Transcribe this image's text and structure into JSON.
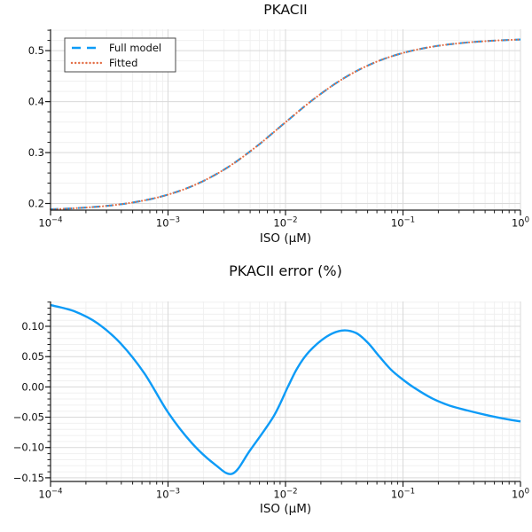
{
  "chart_data": [
    {
      "type": "line",
      "title": "PKACII",
      "xlabel": "ISO (μM)",
      "ylabel": "",
      "x_scale": "log10",
      "xlim_log10": [
        -4,
        0
      ],
      "ylim": [
        0.187,
        0.542
      ],
      "x_ticks_log10": [
        -4,
        -3,
        -2,
        -1,
        0
      ],
      "x_tick_labels": [
        "10^−4",
        "10^−3",
        "10^−2",
        "10^−1",
        "10^0"
      ],
      "y_ticks": [
        0.2,
        0.3,
        0.4,
        0.5
      ],
      "y_tick_labels": [
        "0.2",
        "0.3",
        "0.4",
        "0.5"
      ],
      "grid": {
        "major": true,
        "minor": true
      },
      "legend": {
        "position": "top-left"
      },
      "series": [
        {
          "name": "Full model",
          "color": "#0d9bf7",
          "line_style": "dashed",
          "points_log10x_y": [
            [
              -4.0,
              0.1885
            ],
            [
              -3.75,
              0.1913
            ],
            [
              -3.5,
              0.1959
            ],
            [
              -3.25,
              0.204
            ],
            [
              -3.0,
              0.2174
            ],
            [
              -2.75,
              0.2386
            ],
            [
              -2.5,
              0.2699
            ],
            [
              -2.25,
              0.3114
            ],
            [
              -2.0,
              0.3594
            ],
            [
              -1.75,
              0.4066
            ],
            [
              -1.5,
              0.4464
            ],
            [
              -1.25,
              0.4759
            ],
            [
              -1.0,
              0.4955
            ],
            [
              -0.75,
              0.5078
            ],
            [
              -0.5,
              0.5151
            ],
            [
              -0.25,
              0.5193
            ],
            [
              0.0,
              0.5218
            ]
          ]
        },
        {
          "name": "Fitted",
          "color": "#e36f47",
          "line_style": "dotted",
          "points_log10x_y": [
            [
              -4.0,
              0.1885
            ],
            [
              -3.75,
              0.1913
            ],
            [
              -3.5,
              0.1959
            ],
            [
              -3.25,
              0.204
            ],
            [
              -3.0,
              0.2174
            ],
            [
              -2.75,
              0.2386
            ],
            [
              -2.5,
              0.2699
            ],
            [
              -2.25,
              0.3114
            ],
            [
              -2.0,
              0.3594
            ],
            [
              -1.75,
              0.4066
            ],
            [
              -1.5,
              0.4464
            ],
            [
              -1.25,
              0.4759
            ],
            [
              -1.0,
              0.4955
            ],
            [
              -0.75,
              0.5078
            ],
            [
              -0.5,
              0.5151
            ],
            [
              -0.25,
              0.5193
            ],
            [
              0.0,
              0.5218
            ]
          ]
        }
      ]
    },
    {
      "type": "line",
      "title": "PKACII error (%)",
      "xlabel": "ISO (μM)",
      "ylabel": "",
      "x_scale": "log10",
      "xlim_log10": [
        -4,
        0
      ],
      "ylim": [
        -0.156,
        0.141
      ],
      "x_ticks_log10": [
        -4,
        -3,
        -2,
        -1,
        0
      ],
      "x_tick_labels": [
        "10^−4",
        "10^−3",
        "10^−2",
        "10^−1",
        "10^0"
      ],
      "y_ticks": [
        -0.15,
        -0.1,
        -0.05,
        0,
        0.05,
        0.1
      ],
      "y_tick_labels": [
        "−0.15",
        "−0.10",
        "−0.05",
        "0.00",
        "0.05",
        "0.10"
      ],
      "grid": {
        "major": true,
        "minor": true
      },
      "legend": null,
      "series": [
        {
          "name": "PKACII error (%)",
          "color": "#0d9bf7",
          "line_style": "solid",
          "points_log10x_y": [
            [
              -4.0,
              0.135
            ],
            [
              -3.8,
              0.125
            ],
            [
              -3.6,
              0.105
            ],
            [
              -3.4,
              0.071
            ],
            [
              -3.2,
              0.022
            ],
            [
              -3.0,
              -0.042
            ],
            [
              -2.8,
              -0.092
            ],
            [
              -2.6,
              -0.128
            ],
            [
              -2.45,
              -0.143
            ],
            [
              -2.3,
              -0.104
            ],
            [
              -2.1,
              -0.048
            ],
            [
              -1.98,
              0.0
            ],
            [
              -1.9,
              0.031
            ],
            [
              -1.8,
              0.058
            ],
            [
              -1.65,
              0.083
            ],
            [
              -1.52,
              0.093
            ],
            [
              -1.4,
              0.089
            ],
            [
              -1.3,
              0.073
            ],
            [
              -1.2,
              0.05
            ],
            [
              -1.1,
              0.028
            ],
            [
              -1.0,
              0.012
            ],
            [
              -0.9,
              -0.002
            ],
            [
              -0.75,
              -0.019
            ],
            [
              -0.6,
              -0.031
            ],
            [
              -0.45,
              -0.039
            ],
            [
              -0.3,
              -0.046
            ],
            [
              -0.15,
              -0.052
            ],
            [
              0.0,
              -0.057
            ]
          ]
        }
      ]
    }
  ],
  "colors": {
    "background": "#ffffff",
    "series_blue": "#0d9bf7",
    "series_orange": "#e36f47",
    "axis": "#1c1c1c",
    "text": "#0e0e0e",
    "grid_major": "#d9d9d9",
    "grid_minor": "#f0f0f0",
    "legend_border": "#4a4a4a"
  }
}
